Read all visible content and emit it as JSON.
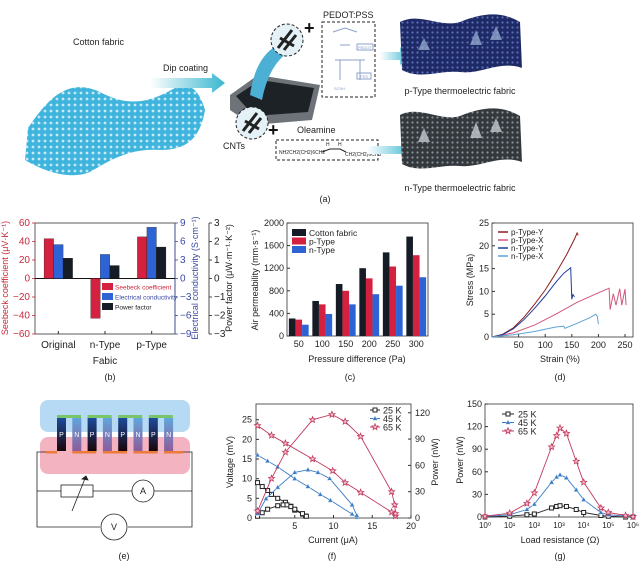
{
  "panel_a": {
    "caption": "(a)",
    "cotton_fabric": "Cotton fabric",
    "dip_coating": "Dip coating",
    "pedot_pss": "PEDOT:PSS",
    "pedot_tag": "PEDOT",
    "pss_tag": "PSS",
    "so3h": "SO3H",
    "oleamine": "Oleamine",
    "oleamine_formula_left": "NH2CH2(CH2)6CH2",
    "oleamine_formula_right": "CH2(CH2)6CH3",
    "h_label": "H",
    "cnts": "CNTs",
    "plus": "+",
    "p_type_label": "p-Type thermoelectric fabric",
    "n_type_label": "n-Type thermoelectric fabric",
    "colors": {
      "cotton": "#3fb4dc",
      "p_fabric": "#1e2a66",
      "n_fabric": "#3b4146",
      "arrow": "#39b7cf"
    }
  },
  "panel_e": {
    "caption": "(e)",
    "legs": [
      "P",
      "N",
      "P",
      "N",
      "P",
      "N",
      "P",
      "N"
    ],
    "ammeter": "A",
    "voltmeter": "V",
    "colors": {
      "cold": "#a9d2f2",
      "hot": "#f2a6b6",
      "top_electrode": "#7ac46a",
      "bottom_electrode": "#ee7a3a"
    }
  },
  "chart_data": [
    {
      "id": "b",
      "type": "bar",
      "caption": "(b)",
      "xlabel": "Fabic",
      "categories": [
        "Original",
        "n-Type",
        "p-Type"
      ],
      "axes": [
        {
          "label": "Seebeck coefficient (μV·K⁻¹)",
          "range": [
            -60,
            60
          ],
          "ticks": [
            -60,
            -40,
            -20,
            0,
            20,
            40,
            60
          ],
          "color": "#c8283c"
        },
        {
          "label": "Electrical conductivity (S·cm⁻¹)",
          "range": [
            -9,
            9
          ],
          "ticks": [
            -9,
            -6,
            -3,
            0,
            3,
            6,
            9
          ],
          "color": "#3a4aa0"
        },
        {
          "label": "Power factor (μW·m⁻¹·K⁻²)",
          "range": [
            -3,
            3
          ],
          "ticks": [
            -3,
            -2,
            -1,
            0,
            1,
            2,
            3
          ],
          "color": "#222222"
        }
      ],
      "series": [
        {
          "name": "Seebeck coefficient",
          "axis": 0,
          "values": [
            43,
            -43,
            45
          ],
          "color": "#d4213f"
        },
        {
          "name": "Electrical conductivity",
          "axis": 1,
          "values": [
            5.5,
            3.9,
            8.3
          ],
          "color": "#2e63d6"
        },
        {
          "name": "Power factor",
          "axis": 2,
          "values": [
            1.1,
            0.7,
            1.7
          ],
          "color": "#161c26"
        }
      ],
      "legend": "bottom-center"
    },
    {
      "id": "c",
      "type": "bar",
      "caption": "(c)",
      "xlabel": "Pressure difference (Pa)",
      "ylabel": "Air permeability (mm·s⁻¹)",
      "categories": [
        "50",
        "100",
        "150",
        "200",
        "250",
        "300"
      ],
      "ylim": [
        0,
        2000
      ],
      "yticks": [
        0,
        400,
        800,
        1200,
        1600,
        2000
      ],
      "series": [
        {
          "name": "Cotton fabric",
          "values": [
            310,
            620,
            920,
            1200,
            1480,
            1760
          ],
          "color": "#161c26"
        },
        {
          "name": "p-Type",
          "values": [
            290,
            560,
            800,
            1020,
            1230,
            1430
          ],
          "color": "#d4213f"
        },
        {
          "name": "n-Type",
          "values": [
            200,
            390,
            560,
            740,
            890,
            1040
          ],
          "color": "#2e63d6"
        }
      ],
      "legend": "top-left"
    },
    {
      "id": "d",
      "type": "line",
      "caption": "(d)",
      "xlabel": "Strain (%)",
      "ylabel": "Stress (MPa)",
      "xlim": [
        0,
        265
      ],
      "ylim": [
        0,
        25
      ],
      "xticks": [
        50,
        100,
        150,
        200,
        250
      ],
      "yticks": [
        0,
        5,
        10,
        15,
        20,
        25
      ],
      "series": [
        {
          "name": "p-Type-Y",
          "color": "#8b1f1f",
          "points": [
            [
              0,
              0
            ],
            [
              20,
              0.6
            ],
            [
              40,
              2
            ],
            [
              60,
              4.3
            ],
            [
              80,
              7.2
            ],
            [
              100,
              10.3
            ],
            [
              120,
              14
            ],
            [
              140,
              18
            ],
            [
              155,
              21.5
            ],
            [
              160,
              22.8
            ],
            [
              162,
              22.3
            ]
          ]
        },
        {
          "name": "p-Type-X",
          "color": "#d2577a",
          "points": [
            [
              0,
              0
            ],
            [
              40,
              0.9
            ],
            [
              80,
              2.6
            ],
            [
              120,
              5
            ],
            [
              160,
              7.6
            ],
            [
              200,
              9.7
            ],
            [
              220,
              10.7
            ],
            [
              222,
              6
            ],
            [
              228,
              9.5
            ],
            [
              233,
              7
            ],
            [
              240,
              10.6
            ],
            [
              244,
              7
            ],
            [
              250,
              10.5
            ],
            [
              252,
              7
            ]
          ]
        },
        {
          "name": "n-Type-Y",
          "color": "#1f3c9c",
          "points": [
            [
              0,
              0
            ],
            [
              20,
              0.5
            ],
            [
              40,
              1.8
            ],
            [
              60,
              3.8
            ],
            [
              80,
              6.3
            ],
            [
              100,
              9
            ],
            [
              120,
              12
            ],
            [
              135,
              14
            ],
            [
              148,
              15.2
            ],
            [
              150,
              8.3
            ],
            [
              152,
              9.3
            ],
            [
              155,
              8.8
            ]
          ]
        },
        {
          "name": "n-Type-X",
          "color": "#5fa4d6",
          "points": [
            [
              0,
              0
            ],
            [
              40,
              0.5
            ],
            [
              80,
              1.2
            ],
            [
              120,
              2.2
            ],
            [
              135,
              2.4
            ],
            [
              137,
              1.9
            ],
            [
              160,
              3
            ],
            [
              185,
              4.3
            ],
            [
              195,
              5
            ],
            [
              198,
              4.5
            ],
            [
              200,
              2.8
            ]
          ]
        }
      ],
      "legend": "top-left"
    },
    {
      "id": "f",
      "type": "line",
      "caption": "(f)",
      "xlabel": "Current (μA)",
      "ylabel": "Voltage (mV)",
      "y2label": "Power (nW)",
      "xlim": [
        0,
        20
      ],
      "ylim": [
        0,
        29
      ],
      "y2lim": [
        0,
        130
      ],
      "xticks": [
        5,
        10,
        15,
        20
      ],
      "yticks": [
        0,
        5,
        10,
        15,
        20,
        25
      ],
      "y2ticks": [
        0,
        30,
        60,
        90,
        120
      ],
      "series": [
        {
          "name": "25 K",
          "marker": "square",
          "color": "#222222",
          "voltage": [
            [
              0.2,
              9
            ],
            [
              0.8,
              8
            ],
            [
              1.5,
              7
            ],
            [
              2,
              6
            ],
            [
              2.8,
              5
            ],
            [
              3.8,
              4
            ],
            [
              4.5,
              3
            ],
            [
              5,
              2
            ],
            [
              6,
              1
            ],
            [
              6.4,
              0.5
            ]
          ],
          "power": [
            [
              0.2,
              2
            ],
            [
              0.8,
              6
            ],
            [
              1.5,
              10
            ],
            [
              2.8,
              14
            ],
            [
              3.5,
              15
            ],
            [
              4,
              15
            ],
            [
              4.5,
              13
            ],
            [
              5,
              10
            ],
            [
              6,
              5
            ],
            [
              6.5,
              2
            ]
          ]
        },
        {
          "name": "45 K",
          "marker": "triangle",
          "color": "#3a7cc4",
          "voltage": [
            [
              0.2,
              16
            ],
            [
              1.5,
              14.5
            ],
            [
              2.8,
              13
            ],
            [
              5,
              10
            ],
            [
              6.7,
              8
            ],
            [
              8.3,
              6
            ],
            [
              9.6,
              4.5
            ],
            [
              12.4,
              1
            ],
            [
              13,
              0.2
            ]
          ],
          "power": [
            [
              0.2,
              5
            ],
            [
              1.3,
              22
            ],
            [
              2.8,
              35
            ],
            [
              5,
              52
            ],
            [
              6.7,
              55
            ],
            [
              8,
              52
            ],
            [
              9.5,
              45
            ],
            [
              12.4,
              15
            ],
            [
              13,
              3
            ]
          ]
        },
        {
          "name": "65 K",
          "marker": "star",
          "color": "#c23a5e",
          "voltage": [
            [
              0.2,
              23.5
            ],
            [
              2,
              21
            ],
            [
              3.8,
              19
            ],
            [
              7.3,
              15
            ],
            [
              9.9,
              12
            ],
            [
              11.5,
              9
            ],
            [
              13.5,
              6.5
            ],
            [
              17.5,
              1.5
            ],
            [
              18,
              0.5
            ]
          ],
          "power": [
            [
              0.2,
              8
            ],
            [
              2,
              45
            ],
            [
              3.8,
              75
            ],
            [
              7.3,
              112
            ],
            [
              9.8,
              118
            ],
            [
              11.5,
              110
            ],
            [
              13.5,
              93
            ],
            [
              17.5,
              30
            ],
            [
              17.9,
              15
            ],
            [
              18,
              5
            ]
          ]
        }
      ],
      "legend": "top-right"
    },
    {
      "id": "g",
      "type": "line",
      "caption": "(g)",
      "xlabel": "Load resistance (Ω)",
      "ylabel": "Power (nW)",
      "xscale": "log",
      "xlim": [
        1,
        1000000
      ],
      "ylim": [
        0,
        150
      ],
      "xticks": [
        "10⁰",
        "10¹",
        "10²",
        "10³",
        "10⁴",
        "10⁵",
        "10⁶"
      ],
      "yticks": [
        0,
        30,
        60,
        90,
        120,
        150
      ],
      "series": [
        {
          "name": "25 K",
          "marker": "square",
          "color": "#222222",
          "points": [
            [
              1,
              0
            ],
            [
              10,
              1
            ],
            [
              50,
              3
            ],
            [
              100,
              4
            ],
            [
              500,
              12
            ],
            [
              800,
              14
            ],
            [
              1100,
              15
            ],
            [
              2000,
              14
            ],
            [
              5000,
              10
            ],
            [
              10000,
              6
            ],
            [
              50000,
              2
            ],
            [
              100000,
              1
            ],
            [
              500000,
              0
            ],
            [
              1000000,
              0
            ]
          ]
        },
        {
          "name": "45 K",
          "marker": "triangle",
          "color": "#3a7cc4",
          "points": [
            [
              1,
              0.5
            ],
            [
              10,
              3
            ],
            [
              50,
              10
            ],
            [
              100,
              17
            ],
            [
              500,
              46
            ],
            [
              800,
              53
            ],
            [
              1100,
              56
            ],
            [
              2000,
              52
            ],
            [
              5000,
              36
            ],
            [
              10000,
              23
            ],
            [
              50000,
              6
            ],
            [
              100000,
              3
            ],
            [
              500000,
              1
            ],
            [
              1000000,
              0
            ]
          ]
        },
        {
          "name": "65 K",
          "marker": "star",
          "color": "#c23a5e",
          "points": [
            [
              1,
              1
            ],
            [
              10,
              5
            ],
            [
              50,
              18
            ],
            [
              100,
              32
            ],
            [
              500,
              93
            ],
            [
              800,
              108
            ],
            [
              1100,
              118
            ],
            [
              2000,
              111
            ],
            [
              5000,
              74
            ],
            [
              10000,
              46
            ],
            [
              50000,
              12
            ],
            [
              100000,
              6
            ],
            [
              500000,
              2
            ],
            [
              1000000,
              0.5
            ]
          ]
        }
      ],
      "legend": "top-left"
    }
  ]
}
